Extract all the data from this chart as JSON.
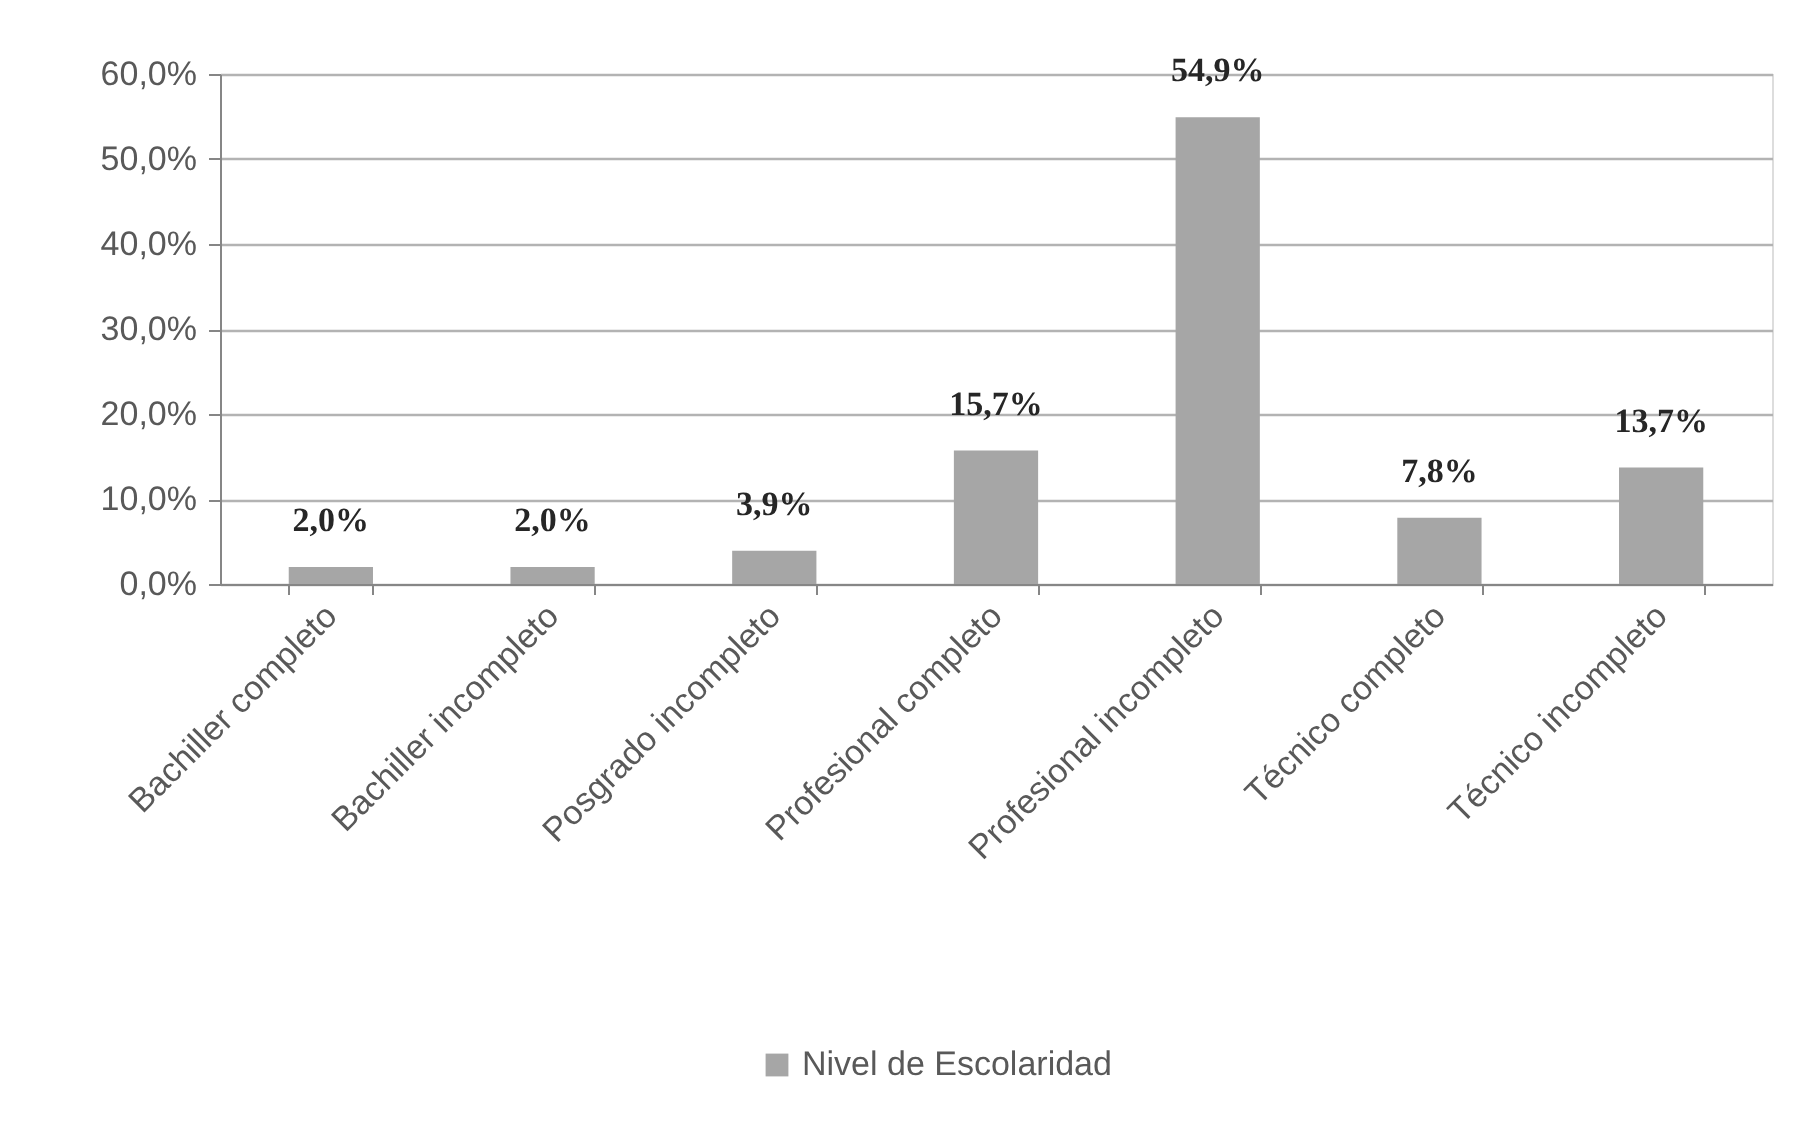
{
  "chart_data": {
    "type": "bar",
    "categories": [
      "Bachiller completo",
      "Bachiller incompleto",
      "Posgrado incompleto",
      "Profesional completo",
      "Profesional incompleto",
      "Técnico completo",
      "Técnico incompleto"
    ],
    "series": [
      {
        "name": "Nivel de Escolaridad",
        "color": "#a6a6a6",
        "values": [
          2.0,
          2.0,
          3.9,
          15.7,
          54.9,
          7.8,
          13.7
        ],
        "value_labels": [
          "2,0%",
          "2,0%",
          "3,9%",
          "15,7%",
          "54,9%",
          "7,8%",
          "13,7%"
        ]
      }
    ],
    "ylim": [
      0,
      60
    ],
    "yticks": [
      {
        "value": 0,
        "label": "0,0%"
      },
      {
        "value": 10,
        "label": "10,0%"
      },
      {
        "value": 20,
        "label": "20,0%"
      },
      {
        "value": 30,
        "label": "30,0%"
      },
      {
        "value": 40,
        "label": "40,0%"
      },
      {
        "value": 50,
        "label": "50,0%"
      },
      {
        "value": 60,
        "label": "60,0%"
      }
    ],
    "grid": "y",
    "legend": "bottom"
  }
}
